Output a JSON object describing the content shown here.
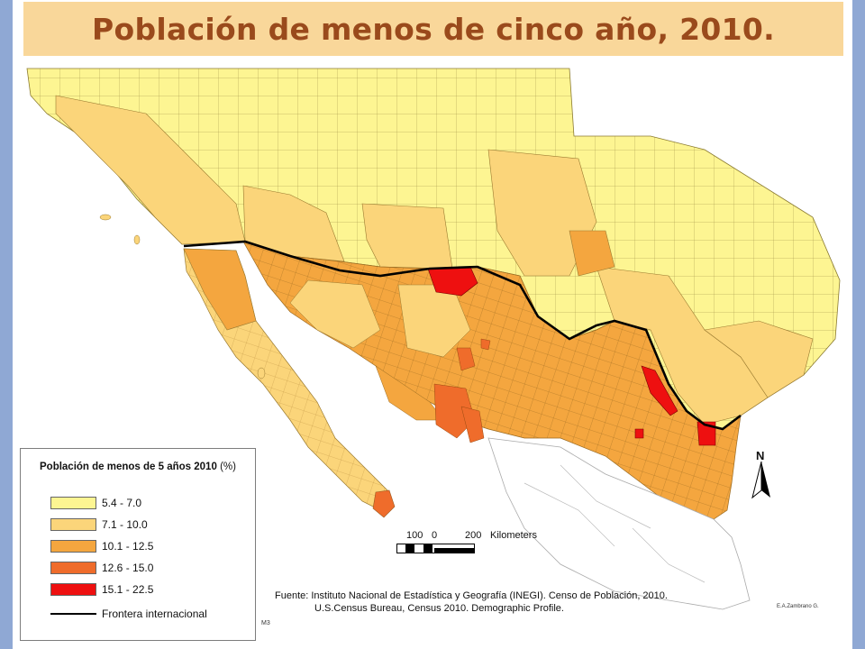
{
  "title": "Población de menos de cinco año, 2010.",
  "legend": {
    "title": "Población de menos de 5 años 2010",
    "unit": "(%)",
    "classes": [
      {
        "label": "5.4 - 7.0",
        "color": "#fdf592"
      },
      {
        "label": "7.1 - 10.0",
        "color": "#fbd57a"
      },
      {
        "label": "10.1 - 12.5",
        "color": "#f4a63f"
      },
      {
        "label": "12.6 - 15.0",
        "color": "#ef6c2b"
      },
      {
        "label": "15.1 - 22.5",
        "color": "#ee1010"
      }
    ],
    "border_label": "Frontera internacional"
  },
  "scale": {
    "labels": [
      "100",
      "0",
      "200"
    ],
    "unit": "Kilometers"
  },
  "north_label": "N",
  "source_lines": [
    "Fuente: Instituto Nacional de Estadística y Geografía (INEGI). Censo de Población, 2010.",
    "U.S.Census Bureau, Census 2010. Demographic Profile."
  ],
  "author": "E.A.Zambrano G.",
  "code": "M3"
}
